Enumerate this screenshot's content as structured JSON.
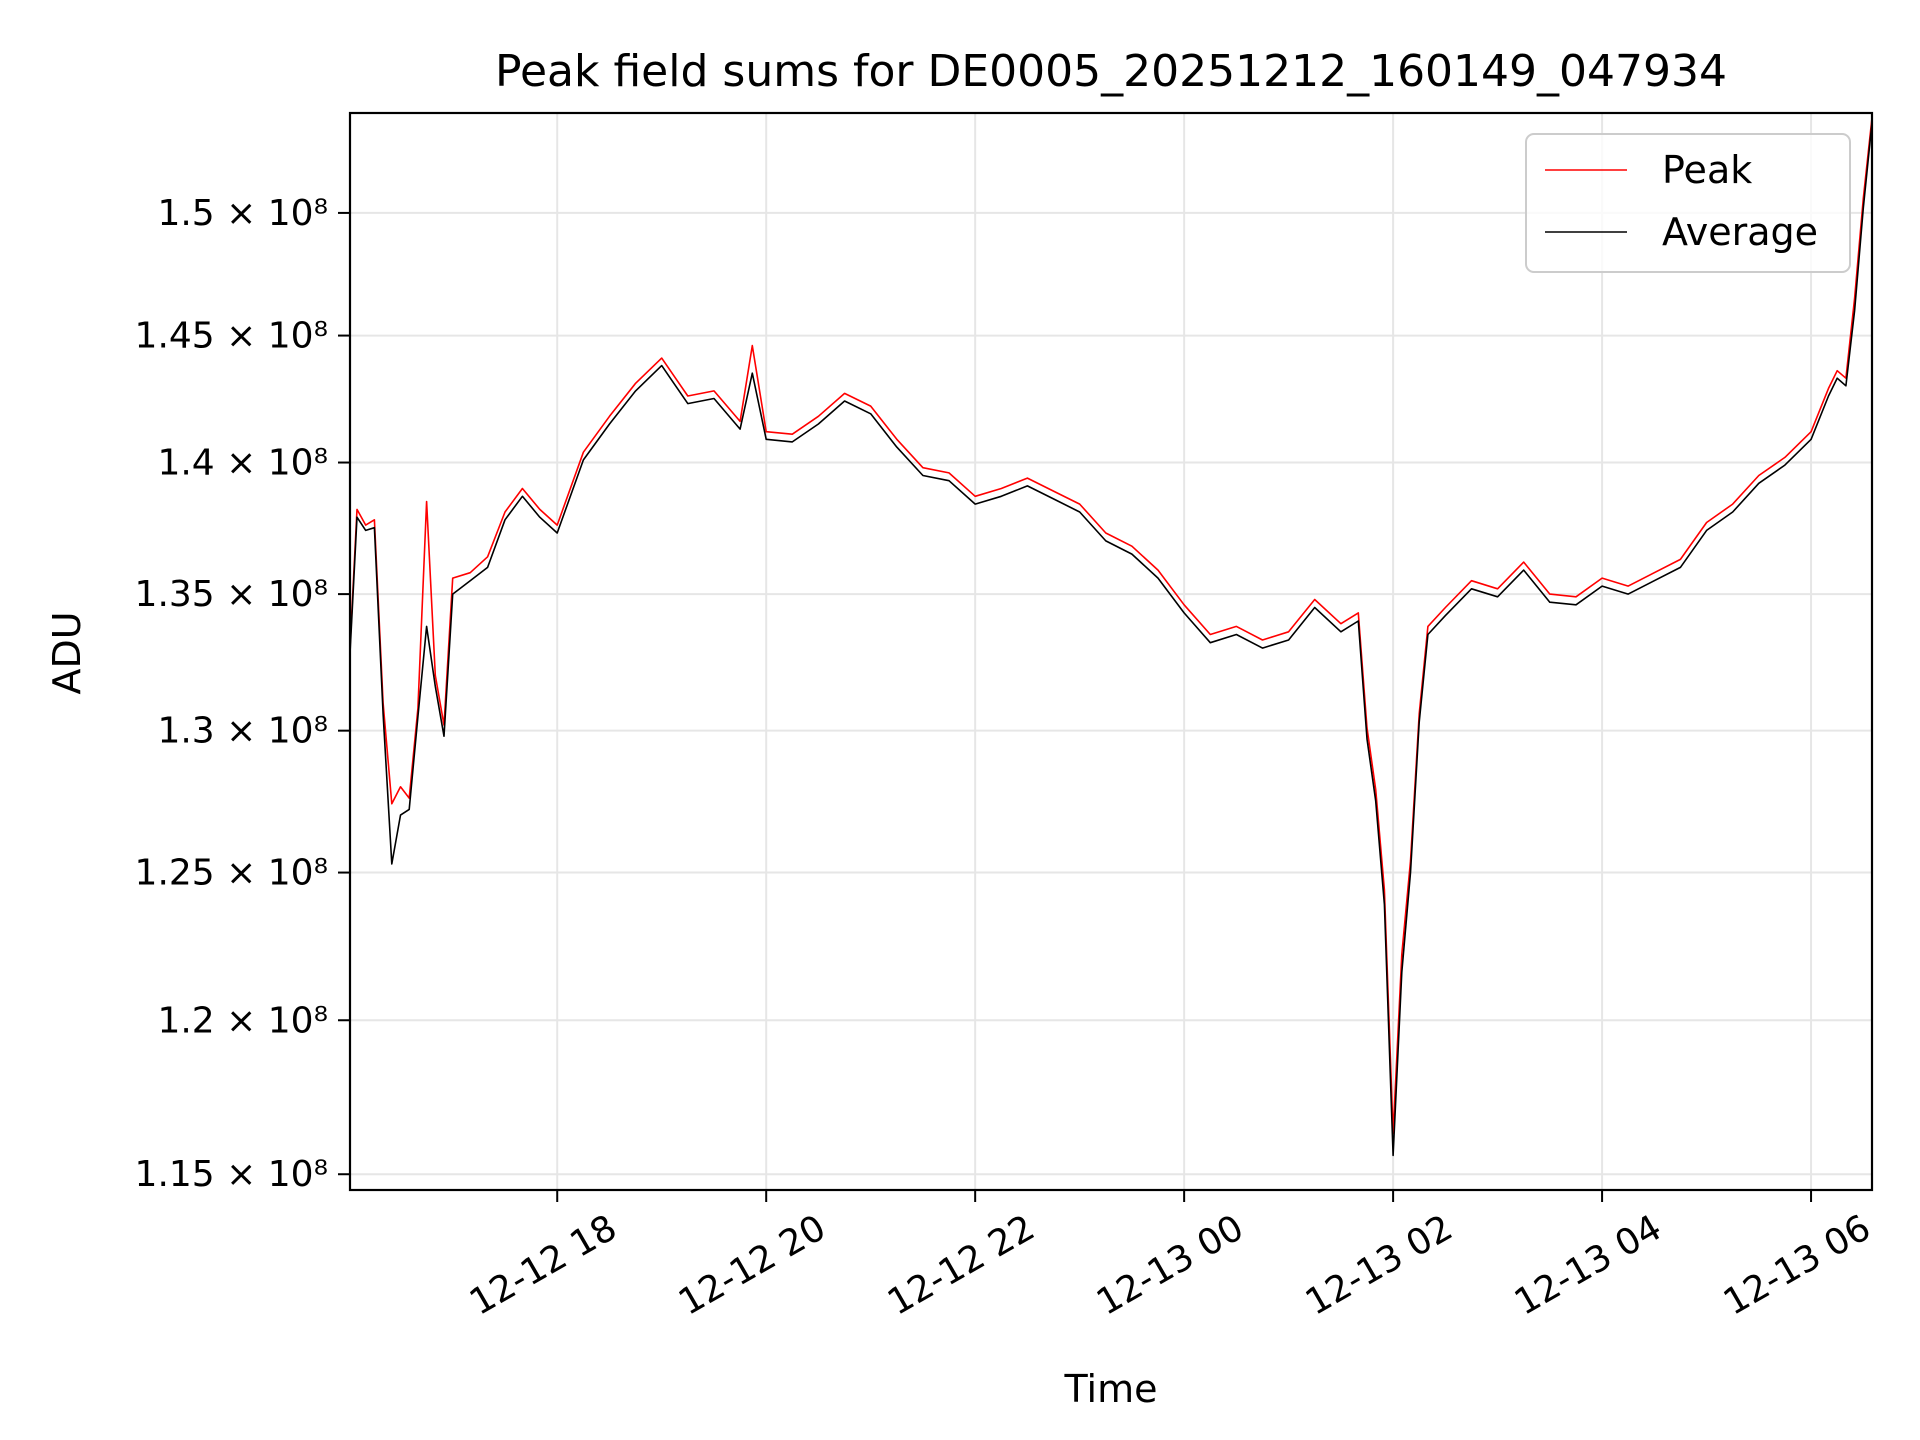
{
  "chart_data": {
    "type": "line",
    "title": "Peak field sums for DE0005_20251212_160149_047934",
    "xlabel": "Time",
    "ylabel": "ADU",
    "x_axis": {
      "kind": "datetime",
      "range": [
        "2025-12-12 16:01",
        "2025-12-13 06:35"
      ],
      "ticks": [
        {
          "label": "12-12 18",
          "t": "2025-12-12 18:00"
        },
        {
          "label": "12-12 20",
          "t": "2025-12-12 20:00"
        },
        {
          "label": "12-12 22",
          "t": "2025-12-12 22:00"
        },
        {
          "label": "12-13 00",
          "t": "2025-12-13 00:00"
        },
        {
          "label": "12-13 02",
          "t": "2025-12-13 02:00"
        },
        {
          "label": "12-13 04",
          "t": "2025-12-13 04:00"
        },
        {
          "label": "12-13 06",
          "t": "2025-12-13 06:00"
        }
      ]
    },
    "y_axis": {
      "scale": "log",
      "range": [
        114500000,
        154200000
      ],
      "ticks": [
        {
          "label": "1.15 × 10⁸",
          "value": 115000000
        },
        {
          "label": "1.2 × 10⁸",
          "value": 120000000
        },
        {
          "label": "1.25 × 10⁸",
          "value": 125000000
        },
        {
          "label": "1.3 × 10⁸",
          "value": 130000000
        },
        {
          "label": "1.35 × 10⁸",
          "value": 135000000
        },
        {
          "label": "1.4 × 10⁸",
          "value": 140000000
        },
        {
          "label": "1.45 × 10⁸",
          "value": 145000000
        },
        {
          "label": "1.5 × 10⁸",
          "value": 150000000
        }
      ]
    },
    "grid": true,
    "legend": {
      "placement": "top-right"
    },
    "series": [
      {
        "name": "Peak",
        "color": "#ff0000",
        "x": [
          "2025-12-12 16:01",
          "2025-12-12 16:05",
          "2025-12-12 16:10",
          "2025-12-12 16:15",
          "2025-12-12 16:20",
          "2025-12-12 16:25",
          "2025-12-12 16:30",
          "2025-12-12 16:35",
          "2025-12-12 16:40",
          "2025-12-12 16:45",
          "2025-12-12 16:50",
          "2025-12-12 16:55",
          "2025-12-12 17:00",
          "2025-12-12 17:10",
          "2025-12-12 17:20",
          "2025-12-12 17:30",
          "2025-12-12 17:40",
          "2025-12-12 17:50",
          "2025-12-12 18:00",
          "2025-12-12 18:15",
          "2025-12-12 18:30",
          "2025-12-12 18:45",
          "2025-12-12 19:00",
          "2025-12-12 19:15",
          "2025-12-12 19:30",
          "2025-12-12 19:45",
          "2025-12-12 19:52",
          "2025-12-12 20:00",
          "2025-12-12 20:15",
          "2025-12-12 20:30",
          "2025-12-12 20:45",
          "2025-12-12 21:00",
          "2025-12-12 21:15",
          "2025-12-12 21:30",
          "2025-12-12 21:45",
          "2025-12-12 22:00",
          "2025-12-12 22:15",
          "2025-12-12 22:30",
          "2025-12-12 22:45",
          "2025-12-12 23:00",
          "2025-12-12 23:15",
          "2025-12-12 23:30",
          "2025-12-12 23:45",
          "2025-12-13 00:00",
          "2025-12-13 00:15",
          "2025-12-13 00:30",
          "2025-12-13 00:45",
          "2025-12-13 01:00",
          "2025-12-13 01:15",
          "2025-12-13 01:30",
          "2025-12-13 01:40",
          "2025-12-13 01:45",
          "2025-12-13 01:50",
          "2025-12-13 01:55",
          "2025-12-13 02:00",
          "2025-12-13 02:05",
          "2025-12-13 02:10",
          "2025-12-13 02:15",
          "2025-12-13 02:20",
          "2025-12-13 02:30",
          "2025-12-13 02:45",
          "2025-12-13 03:00",
          "2025-12-13 03:15",
          "2025-12-13 03:30",
          "2025-12-13 03:45",
          "2025-12-13 04:00",
          "2025-12-13 04:15",
          "2025-12-13 04:30",
          "2025-12-13 04:45",
          "2025-12-13 05:00",
          "2025-12-13 05:15",
          "2025-12-13 05:30",
          "2025-12-13 05:45",
          "2025-12-13 06:00",
          "2025-12-13 06:10",
          "2025-12-13 06:15",
          "2025-12-13 06:20",
          "2025-12-13 06:25",
          "2025-12-13 06:30",
          "2025-12-13 06:35"
        ],
        "values": [
          133000000,
          138200000,
          137600000,
          137800000,
          131000000,
          127400000,
          128000000,
          127600000,
          130800000,
          138500000,
          132000000,
          130200000,
          135600000,
          135800000,
          136400000,
          138100000,
          139000000,
          138200000,
          137600000,
          140400000,
          141800000,
          143100000,
          144100000,
          142600000,
          142800000,
          141600000,
          144600000,
          141200000,
          141100000,
          141800000,
          142700000,
          142200000,
          140900000,
          139800000,
          139600000,
          138700000,
          139000000,
          139400000,
          138900000,
          138400000,
          137300000,
          136800000,
          135900000,
          134600000,
          133500000,
          133800000,
          133300000,
          133600000,
          134800000,
          133900000,
          134300000,
          130100000,
          127900000,
          124400000,
          116300000,
          122200000,
          125400000,
          130600000,
          133800000,
          134500000,
          135500000,
          135200000,
          136200000,
          135000000,
          134900000,
          135600000,
          135300000,
          135800000,
          136300000,
          137700000,
          138400000,
          139500000,
          140200000,
          141200000,
          142900000,
          143600000,
          143300000,
          146500000,
          150600000,
          154000000
        ]
      },
      {
        "name": "Average",
        "color": "#000000",
        "x": [
          "2025-12-12 16:01",
          "2025-12-12 16:05",
          "2025-12-12 16:10",
          "2025-12-12 16:15",
          "2025-12-12 16:20",
          "2025-12-12 16:25",
          "2025-12-12 16:30",
          "2025-12-12 16:35",
          "2025-12-12 16:40",
          "2025-12-12 16:45",
          "2025-12-12 16:50",
          "2025-12-12 16:55",
          "2025-12-12 17:00",
          "2025-12-12 17:10",
          "2025-12-12 17:20",
          "2025-12-12 17:30",
          "2025-12-12 17:40",
          "2025-12-12 17:50",
          "2025-12-12 18:00",
          "2025-12-12 18:15",
          "2025-12-12 18:30",
          "2025-12-12 18:45",
          "2025-12-12 19:00",
          "2025-12-12 19:15",
          "2025-12-12 19:30",
          "2025-12-12 19:45",
          "2025-12-12 19:52",
          "2025-12-12 20:00",
          "2025-12-12 20:15",
          "2025-12-12 20:30",
          "2025-12-12 20:45",
          "2025-12-12 21:00",
          "2025-12-12 21:15",
          "2025-12-12 21:30",
          "2025-12-12 21:45",
          "2025-12-12 22:00",
          "2025-12-12 22:15",
          "2025-12-12 22:30",
          "2025-12-12 22:45",
          "2025-12-12 23:00",
          "2025-12-12 23:15",
          "2025-12-12 23:30",
          "2025-12-12 23:45",
          "2025-12-13 00:00",
          "2025-12-13 00:15",
          "2025-12-13 00:30",
          "2025-12-13 00:45",
          "2025-12-13 01:00",
          "2025-12-13 01:15",
          "2025-12-13 01:30",
          "2025-12-13 01:40",
          "2025-12-13 01:45",
          "2025-12-13 01:50",
          "2025-12-13 01:55",
          "2025-12-13 02:00",
          "2025-12-13 02:05",
          "2025-12-13 02:10",
          "2025-12-13 02:15",
          "2025-12-13 02:20",
          "2025-12-13 02:30",
          "2025-12-13 02:45",
          "2025-12-13 03:00",
          "2025-12-13 03:15",
          "2025-12-13 03:30",
          "2025-12-13 03:45",
          "2025-12-13 04:00",
          "2025-12-13 04:15",
          "2025-12-13 04:30",
          "2025-12-13 04:45",
          "2025-12-13 05:00",
          "2025-12-13 05:15",
          "2025-12-13 05:30",
          "2025-12-13 05:45",
          "2025-12-13 06:00",
          "2025-12-13 06:10",
          "2025-12-13 06:15",
          "2025-12-13 06:20",
          "2025-12-13 06:25",
          "2025-12-13 06:30",
          "2025-12-13 06:35"
        ],
        "values": [
          132800000,
          137900000,
          137400000,
          137500000,
          130600000,
          125300000,
          127000000,
          127200000,
          130500000,
          133800000,
          131600000,
          129800000,
          135000000,
          135500000,
          136000000,
          137800000,
          138700000,
          137900000,
          137300000,
          140100000,
          141500000,
          142800000,
          143800000,
          142300000,
          142500000,
          141300000,
          143500000,
          140900000,
          140800000,
          141500000,
          142400000,
          141900000,
          140600000,
          139500000,
          139300000,
          138400000,
          138700000,
          139100000,
          138600000,
          138100000,
          137000000,
          136500000,
          135600000,
          134300000,
          133200000,
          133500000,
          133000000,
          133300000,
          134500000,
          133600000,
          134000000,
          129700000,
          127500000,
          123900000,
          115600000,
          121600000,
          125000000,
          130300000,
          133500000,
          134200000,
          135200000,
          134900000,
          135900000,
          134700000,
          134600000,
          135300000,
          135000000,
          135500000,
          136000000,
          137400000,
          138100000,
          139200000,
          139900000,
          140900000,
          142600000,
          143300000,
          143000000,
          146000000,
          150200000,
          153800000
        ]
      }
    ]
  }
}
